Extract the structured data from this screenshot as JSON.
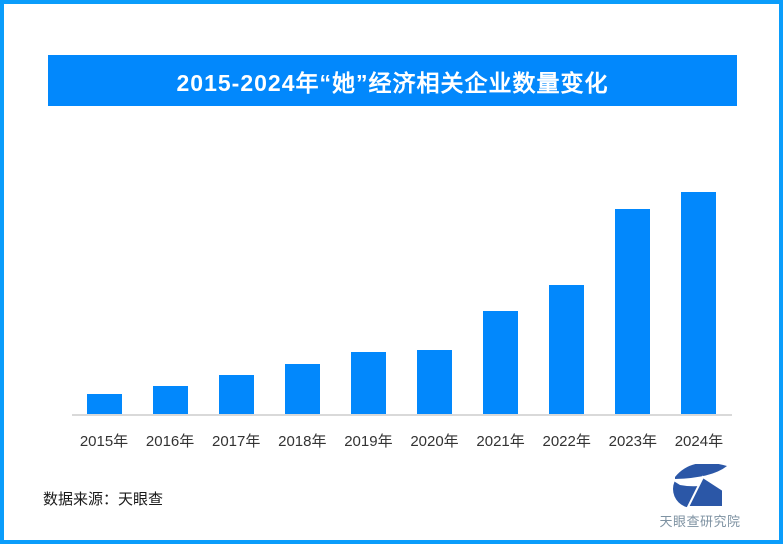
{
  "frame": {
    "border_color": "#0a9dfb",
    "background_color": "#ffffff"
  },
  "title_banner": {
    "text": "2015-2024年“她”经济相关企业数量变化",
    "bg_color": "#0288fc",
    "text_color": "#ffffff"
  },
  "chart_data": {
    "type": "bar",
    "title": "2015-2024年“她”经济相关企业数量变化",
    "categories": [
      "2015年",
      "2016年",
      "2017年",
      "2018年",
      "2019年",
      "2020年",
      "2021年",
      "2022年",
      "2023年",
      "2024年"
    ],
    "values_relative_to_max_pct": [
      9.0,
      12.6,
      17.6,
      22.5,
      27.9,
      28.8,
      46.4,
      58.1,
      92.3,
      100
    ],
    "value_labels_shown": false,
    "y_axis_shown": false,
    "xlabel": "",
    "ylabel": "",
    "legend": "none",
    "grid": false,
    "bar_color": "#0288fc",
    "axis_line_color": "#d9d9d9",
    "tick_label_color": "#333333"
  },
  "footer": {
    "source_text": "数据来源：天眼查",
    "logo_text": "天眼查研究院",
    "logo_mark_color": "#2b57a7"
  }
}
